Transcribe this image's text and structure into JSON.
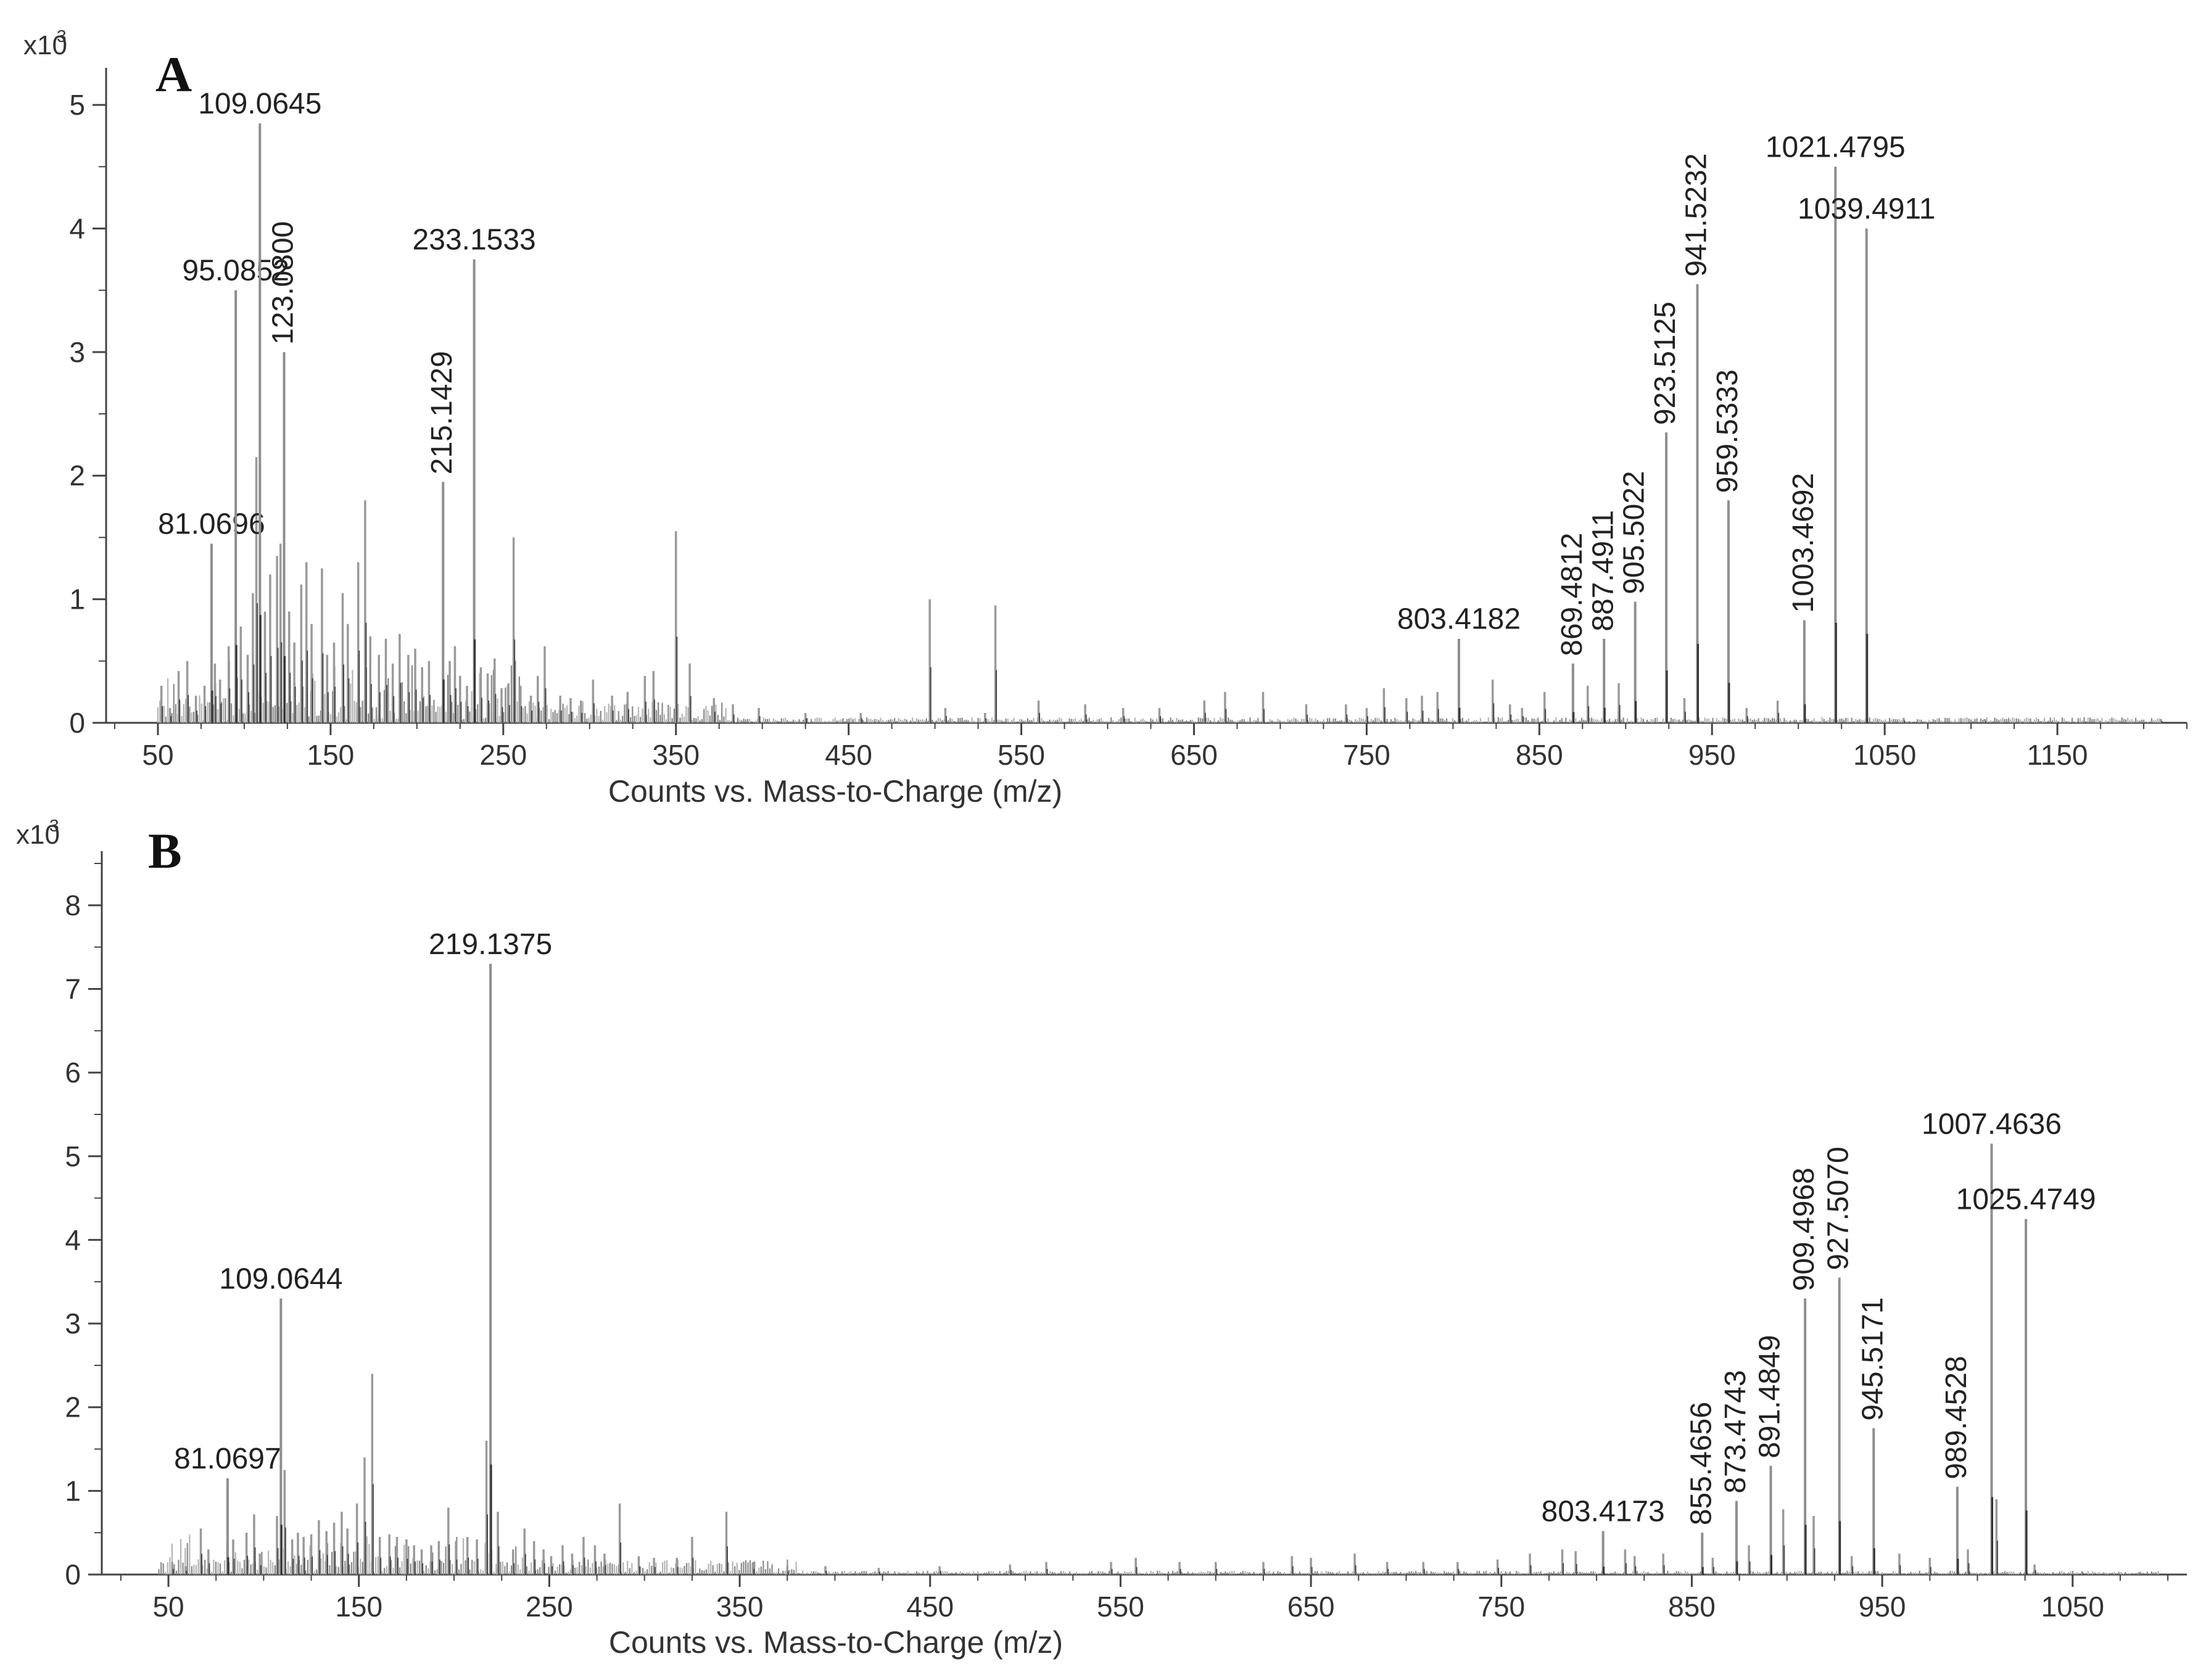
{
  "chart_data": [
    {
      "type": "bar",
      "panel_label": "A",
      "title": "",
      "xlabel": "Counts vs. Mass-to-Charge (m/z)",
      "ylabel": "",
      "y_multiplier": "x10",
      "y_multiplier_exp": "3",
      "xlim": [
        20,
        1225
      ],
      "ylim": [
        0,
        5.2
      ],
      "x_ticks": [
        50,
        150,
        250,
        350,
        450,
        550,
        650,
        750,
        850,
        950,
        1050,
        1150
      ],
      "x_tick_labels": [
        "50",
        "150",
        "250",
        "350",
        "450",
        "550",
        "650",
        "750",
        "850",
        "950",
        "1050",
        "1150"
      ],
      "y_ticks": [
        0,
        1,
        2,
        3,
        4,
        5
      ],
      "y_tick_labels": [
        "0",
        "1",
        "2",
        "3",
        "4",
        "5"
      ],
      "grid": false,
      "labeled_peaks": [
        {
          "mz": 81.0696,
          "intensity": 1.45,
          "label": "81.0696",
          "orient": "h"
        },
        {
          "mz": 95.0852,
          "intensity": 3.5,
          "label": "95.0852",
          "orient": "h"
        },
        {
          "mz": 109.0645,
          "intensity": 4.85,
          "label": "109.0645",
          "orient": "h"
        },
        {
          "mz": 123.08,
          "intensity": 3.0,
          "label": "123.0800",
          "orient": "v"
        },
        {
          "mz": 215.1429,
          "intensity": 1.95,
          "label": "215.1429",
          "orient": "v"
        },
        {
          "mz": 233.1533,
          "intensity": 3.75,
          "label": "233.1533",
          "orient": "h"
        },
        {
          "mz": 803.4182,
          "intensity": 0.68,
          "label": "803.4182",
          "orient": "h"
        },
        {
          "mz": 869.4812,
          "intensity": 0.48,
          "label": "869.4812",
          "orient": "v"
        },
        {
          "mz": 887.4911,
          "intensity": 0.68,
          "label": "887.4911",
          "orient": "v"
        },
        {
          "mz": 905.5022,
          "intensity": 0.98,
          "label": "905.5022",
          "orient": "v"
        },
        {
          "mz": 923.5125,
          "intensity": 2.35,
          "label": "923.5125",
          "orient": "v"
        },
        {
          "mz": 941.5232,
          "intensity": 3.55,
          "label": "941.5232",
          "orient": "v"
        },
        {
          "mz": 959.5333,
          "intensity": 1.8,
          "label": "959.5333",
          "orient": "v"
        },
        {
          "mz": 1003.4692,
          "intensity": 0.83,
          "label": "1003.4692",
          "orient": "v"
        },
        {
          "mz": 1021.4795,
          "intensity": 4.5,
          "label": "1021.4795",
          "orient": "h"
        },
        {
          "mz": 1039.4911,
          "intensity": 4.0,
          "label": "1039.4911",
          "orient": "h"
        }
      ],
      "minor_peaks": [
        [
          52,
          0.3
        ],
        [
          57,
          0.12
        ],
        [
          62,
          0.42
        ],
        [
          67,
          0.5
        ],
        [
          72,
          0.22
        ],
        [
          77,
          0.3
        ],
        [
          83,
          0.48
        ],
        [
          86,
          0.35
        ],
        [
          91,
          0.62
        ],
        [
          98,
          0.78
        ],
        [
          102,
          0.55
        ],
        [
          105,
          1.05
        ],
        [
          107,
          2.15
        ],
        [
          112,
          0.9
        ],
        [
          115,
          1.2
        ],
        [
          119,
          1.35
        ],
        [
          121,
          1.45
        ],
        [
          126,
          0.9
        ],
        [
          129,
          0.65
        ],
        [
          133,
          1.12
        ],
        [
          136,
          1.3
        ],
        [
          139,
          0.8
        ],
        [
          145,
          1.25
        ],
        [
          148,
          0.55
        ],
        [
          152,
          0.65
        ],
        [
          157,
          1.05
        ],
        [
          160,
          0.8
        ],
        [
          166,
          1.3
        ],
        [
          170,
          1.8
        ],
        [
          173,
          0.7
        ],
        [
          178,
          0.55
        ],
        [
          182,
          0.68
        ],
        [
          186,
          0.48
        ],
        [
          190,
          0.72
        ],
        [
          195,
          0.55
        ],
        [
          199,
          0.6
        ],
        [
          203,
          0.45
        ],
        [
          207,
          0.5
        ],
        [
          219,
          0.5
        ],
        [
          222,
          0.62
        ],
        [
          225,
          0.38
        ],
        [
          229,
          0.3
        ],
        [
          237,
          0.45
        ],
        [
          241,
          0.4
        ],
        [
          245,
          0.52
        ],
        [
          249,
          0.28
        ],
        [
          253,
          0.32
        ],
        [
          256,
          1.5
        ],
        [
          260,
          0.3
        ],
        [
          266,
          0.22
        ],
        [
          270,
          0.38
        ],
        [
          274,
          0.62
        ],
        [
          283,
          0.22
        ],
        [
          289,
          0.2
        ],
        [
          295,
          0.18
        ],
        [
          302,
          0.35
        ],
        [
          313,
          0.22
        ],
        [
          322,
          0.25
        ],
        [
          332,
          0.38
        ],
        [
          337,
          0.42
        ],
        [
          350,
          1.55
        ],
        [
          358,
          0.48
        ],
        [
          372,
          0.2
        ],
        [
          383,
          0.15
        ],
        [
          398,
          0.12
        ],
        [
          425,
          0.08
        ],
        [
          457,
          0.08
        ],
        [
          497,
          1.0
        ],
        [
          506,
          0.12
        ],
        [
          529,
          0.08
        ],
        [
          535,
          0.95
        ],
        [
          560,
          0.18
        ],
        [
          587,
          0.15
        ],
        [
          609,
          0.12
        ],
        [
          630,
          0.12
        ],
        [
          656,
          0.18
        ],
        [
          668,
          0.25
        ],
        [
          690,
          0.25
        ],
        [
          715,
          0.15
        ],
        [
          738,
          0.15
        ],
        [
          750,
          0.12
        ],
        [
          760,
          0.28
        ],
        [
          773,
          0.2
        ],
        [
          782,
          0.22
        ],
        [
          791,
          0.25
        ],
        [
          823,
          0.35
        ],
        [
          833,
          0.15
        ],
        [
          840,
          0.12
        ],
        [
          853,
          0.25
        ],
        [
          878,
          0.3
        ],
        [
          896,
          0.32
        ],
        [
          934,
          0.2
        ],
        [
          970,
          0.12
        ],
        [
          988,
          0.18
        ],
        [
          1061,
          0.04
        ],
        [
          1108,
          0.03
        ],
        [
          1210,
          0.03
        ]
      ]
    },
    {
      "type": "bar",
      "panel_label": "B",
      "title": "",
      "xlabel": "Counts vs. Mass-to-Charge (m/z)",
      "ylabel": "",
      "y_multiplier": "x10",
      "y_multiplier_exp": "3",
      "xlim": [
        15,
        1110
      ],
      "ylim": [
        0,
        8.5
      ],
      "x_ticks": [
        50,
        150,
        250,
        350,
        450,
        550,
        650,
        750,
        850,
        950,
        1050
      ],
      "x_tick_labels": [
        "50",
        "150",
        "250",
        "350",
        "450",
        "550",
        "650",
        "750",
        "850",
        "950",
        "1050"
      ],
      "y_ticks": [
        0,
        1,
        2,
        3,
        4,
        5,
        6,
        7,
        8
      ],
      "y_tick_labels": [
        "0",
        "1",
        "2",
        "3",
        "4",
        "5",
        "6",
        "7",
        "8"
      ],
      "grid": false,
      "labeled_peaks": [
        {
          "mz": 81.0697,
          "intensity": 1.15,
          "label": "81.0697",
          "orient": "h"
        },
        {
          "mz": 109.0644,
          "intensity": 3.3,
          "label": "109.0644",
          "orient": "h"
        },
        {
          "mz": 219.1375,
          "intensity": 7.3,
          "label": "219.1375",
          "orient": "h"
        },
        {
          "mz": 803.4173,
          "intensity": 0.52,
          "label": "803.4173",
          "orient": "h"
        },
        {
          "mz": 855.4656,
          "intensity": 0.5,
          "label": "855.4656",
          "orient": "v"
        },
        {
          "mz": 873.4743,
          "intensity": 0.88,
          "label": "873.4743",
          "orient": "v"
        },
        {
          "mz": 891.4849,
          "intensity": 1.3,
          "label": "891.4849",
          "orient": "v"
        },
        {
          "mz": 909.4968,
          "intensity": 3.3,
          "label": "909.4968",
          "orient": "v"
        },
        {
          "mz": 927.507,
          "intensity": 3.55,
          "label": "927.5070",
          "orient": "v"
        },
        {
          "mz": 945.5171,
          "intensity": 1.75,
          "label": "945.5171",
          "orient": "v"
        },
        {
          "mz": 989.4528,
          "intensity": 1.05,
          "label": "989.4528",
          "orient": "v"
        },
        {
          "mz": 1007.4636,
          "intensity": 5.15,
          "label": "1007.4636",
          "orient": "h"
        },
        {
          "mz": 1025.4749,
          "intensity": 4.25,
          "label": "1025.4749",
          "orient": "h"
        }
      ],
      "minor_peaks": [
        [
          52,
          0.15
        ],
        [
          59,
          0.1
        ],
        [
          67,
          0.55
        ],
        [
          71,
          0.3
        ],
        [
          84,
          0.42
        ],
        [
          91,
          0.5
        ],
        [
          95,
          0.72
        ],
        [
          98,
          0.25
        ],
        [
          107,
          0.7
        ],
        [
          111,
          1.25
        ],
        [
          115,
          0.42
        ],
        [
          118,
          0.5
        ],
        [
          121,
          0.45
        ],
        [
          125,
          0.48
        ],
        [
          129,
          0.65
        ],
        [
          133,
          0.52
        ],
        [
          137,
          0.62
        ],
        [
          141,
          0.75
        ],
        [
          144,
          0.55
        ],
        [
          149,
          0.85
        ],
        [
          153,
          1.4
        ],
        [
          157,
          2.4
        ],
        [
          161,
          0.45
        ],
        [
          166,
          0.48
        ],
        [
          170,
          0.45
        ],
        [
          175,
          0.42
        ],
        [
          179,
          0.35
        ],
        [
          183,
          0.3
        ],
        [
          188,
          0.35
        ],
        [
          192,
          0.4
        ],
        [
          197,
          0.8
        ],
        [
          201,
          0.4
        ],
        [
          207,
          0.45
        ],
        [
          212,
          0.42
        ],
        [
          217,
          1.6
        ],
        [
          223,
          0.75
        ],
        [
          231,
          0.3
        ],
        [
          237,
          0.55
        ],
        [
          242,
          0.4
        ],
        [
          247,
          0.3
        ],
        [
          251,
          0.22
        ],
        [
          257,
          0.35
        ],
        [
          262,
          0.25
        ],
        [
          268,
          0.45
        ],
        [
          274,
          0.35
        ],
        [
          279,
          0.25
        ],
        [
          287,
          0.85
        ],
        [
          297,
          0.22
        ],
        [
          305,
          0.2
        ],
        [
          317,
          0.2
        ],
        [
          325,
          0.45
        ],
        [
          343,
          0.75
        ],
        [
          357,
          0.15
        ],
        [
          375,
          0.1
        ],
        [
          395,
          0.1
        ],
        [
          423,
          0.08
        ],
        [
          455,
          0.1
        ],
        [
          492,
          0.12
        ],
        [
          511,
          0.15
        ],
        [
          545,
          0.15
        ],
        [
          558,
          0.2
        ],
        [
          581,
          0.15
        ],
        [
          600,
          0.15
        ],
        [
          625,
          0.15
        ],
        [
          640,
          0.22
        ],
        [
          650,
          0.2
        ],
        [
          673,
          0.25
        ],
        [
          690,
          0.15
        ],
        [
          709,
          0.15
        ],
        [
          727,
          0.15
        ],
        [
          748,
          0.18
        ],
        [
          765,
          0.25
        ],
        [
          782,
          0.3
        ],
        [
          789,
          0.28
        ],
        [
          815,
          0.3
        ],
        [
          820,
          0.22
        ],
        [
          835,
          0.25
        ],
        [
          861,
          0.2
        ],
        [
          880,
          0.35
        ],
        [
          898,
          0.78
        ],
        [
          914,
          0.7
        ],
        [
          934,
          0.22
        ],
        [
          959,
          0.25
        ],
        [
          975,
          0.2
        ],
        [
          995,
          0.3
        ],
        [
          1010,
          0.9
        ],
        [
          1030,
          0.12
        ],
        [
          1055,
          0.04
        ],
        [
          1085,
          0.03
        ]
      ]
    }
  ]
}
